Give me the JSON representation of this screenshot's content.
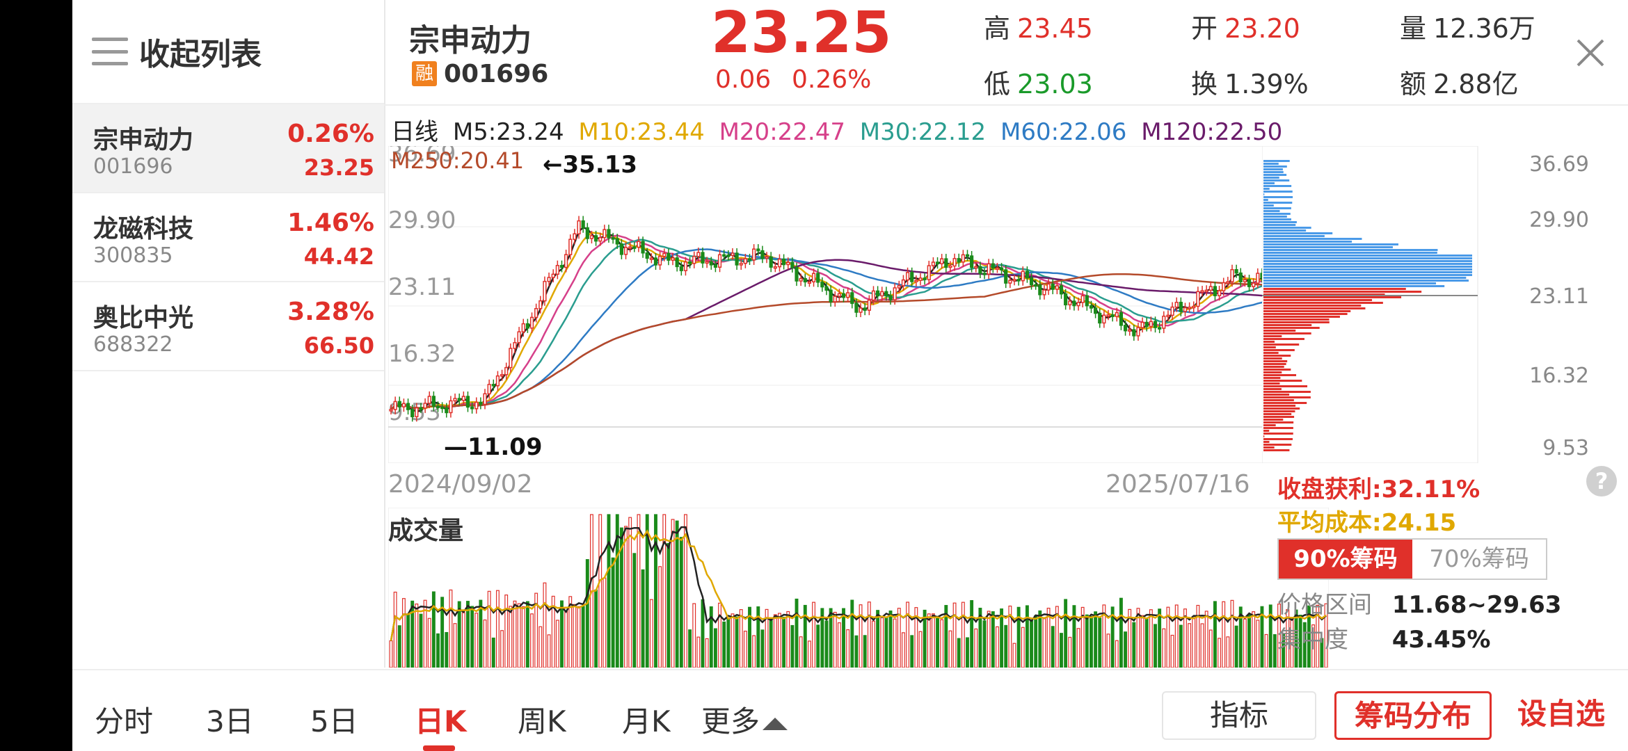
{
  "sidebar": {
    "title": "收起列表",
    "items": [
      {
        "name": "宗申动力",
        "code": "001696",
        "pct": "0.26%",
        "price": "23.25"
      },
      {
        "name": "龙磁科技",
        "code": "300835",
        "pct": "1.46%",
        "price": "44.42"
      },
      {
        "name": "奥比中光",
        "code": "688322",
        "pct": "3.28%",
        "price": "66.50"
      }
    ]
  },
  "header": {
    "name": "宗申动力",
    "rong": "融",
    "code": "001696",
    "price": "23.25",
    "change": "0.06",
    "change_pct": "0.26%",
    "high_label": "高",
    "high": "23.45",
    "low_label": "低",
    "low": "23.03",
    "open_label": "开",
    "open": "23.20",
    "turnover_label": "换",
    "turnover": "1.39%",
    "volume_label": "量",
    "volume": "12.36万",
    "amount_label": "额",
    "amount": "2.88亿"
  },
  "ma": {
    "period": "日线",
    "m5": "M5:23.24",
    "m10": "M10:23.44",
    "m20": "M20:22.47",
    "m30": "M30:22.12",
    "m60": "M60:22.06",
    "m120": "M120:22.50",
    "m250": "M250:20.41"
  },
  "colors": {
    "m5": "#222222",
    "m10": "#e0a800",
    "m20": "#d6408a",
    "m30": "#2a9d8f",
    "m60": "#2e7bc4",
    "m120": "#6a1b6a",
    "m250": "#b44a2a",
    "up": "#e0302a",
    "down": "#1a8a1a"
  },
  "chart_data": {
    "type": "line",
    "title": "日线",
    "x_start": "2024/09/02",
    "x_end": "2025/07/16",
    "y_ticks": [
      "36.69",
      "29.90",
      "23.11",
      "16.32",
      "9.53"
    ],
    "ylim": [
      9.53,
      36.69
    ],
    "max_label": "35.13",
    "min_label": "11.09",
    "close_x": [
      0,
      10,
      20,
      30,
      40,
      50,
      60,
      70,
      80,
      90,
      100
    ],
    "close": [
      10.6,
      11.5,
      29.0,
      25.5,
      26.2,
      21.0,
      26.0,
      23.0,
      18.5,
      24.0,
      23.25
    ],
    "volume_label": "成交量"
  },
  "chips": {
    "right_ticks": [
      "36.69",
      "29.90",
      "23.11",
      "16.32",
      "9.53"
    ],
    "profit": "收盘获利:32.11%",
    "avg_cost": "平均成本:24.15",
    "help": "?",
    "tab90": "90%筹码",
    "tab70": "70%筹码",
    "range_label": "价格区间",
    "range": "11.68~29.63",
    "conc_label": "集中度",
    "conc": "43.45%"
  },
  "bottom": {
    "tabs": [
      "分时",
      "3日",
      "5日",
      "日K",
      "周K",
      "月K",
      "更多"
    ],
    "btn_indicator": "指标",
    "btn_chips": "筹码分布",
    "btn_custom": "设自选"
  }
}
